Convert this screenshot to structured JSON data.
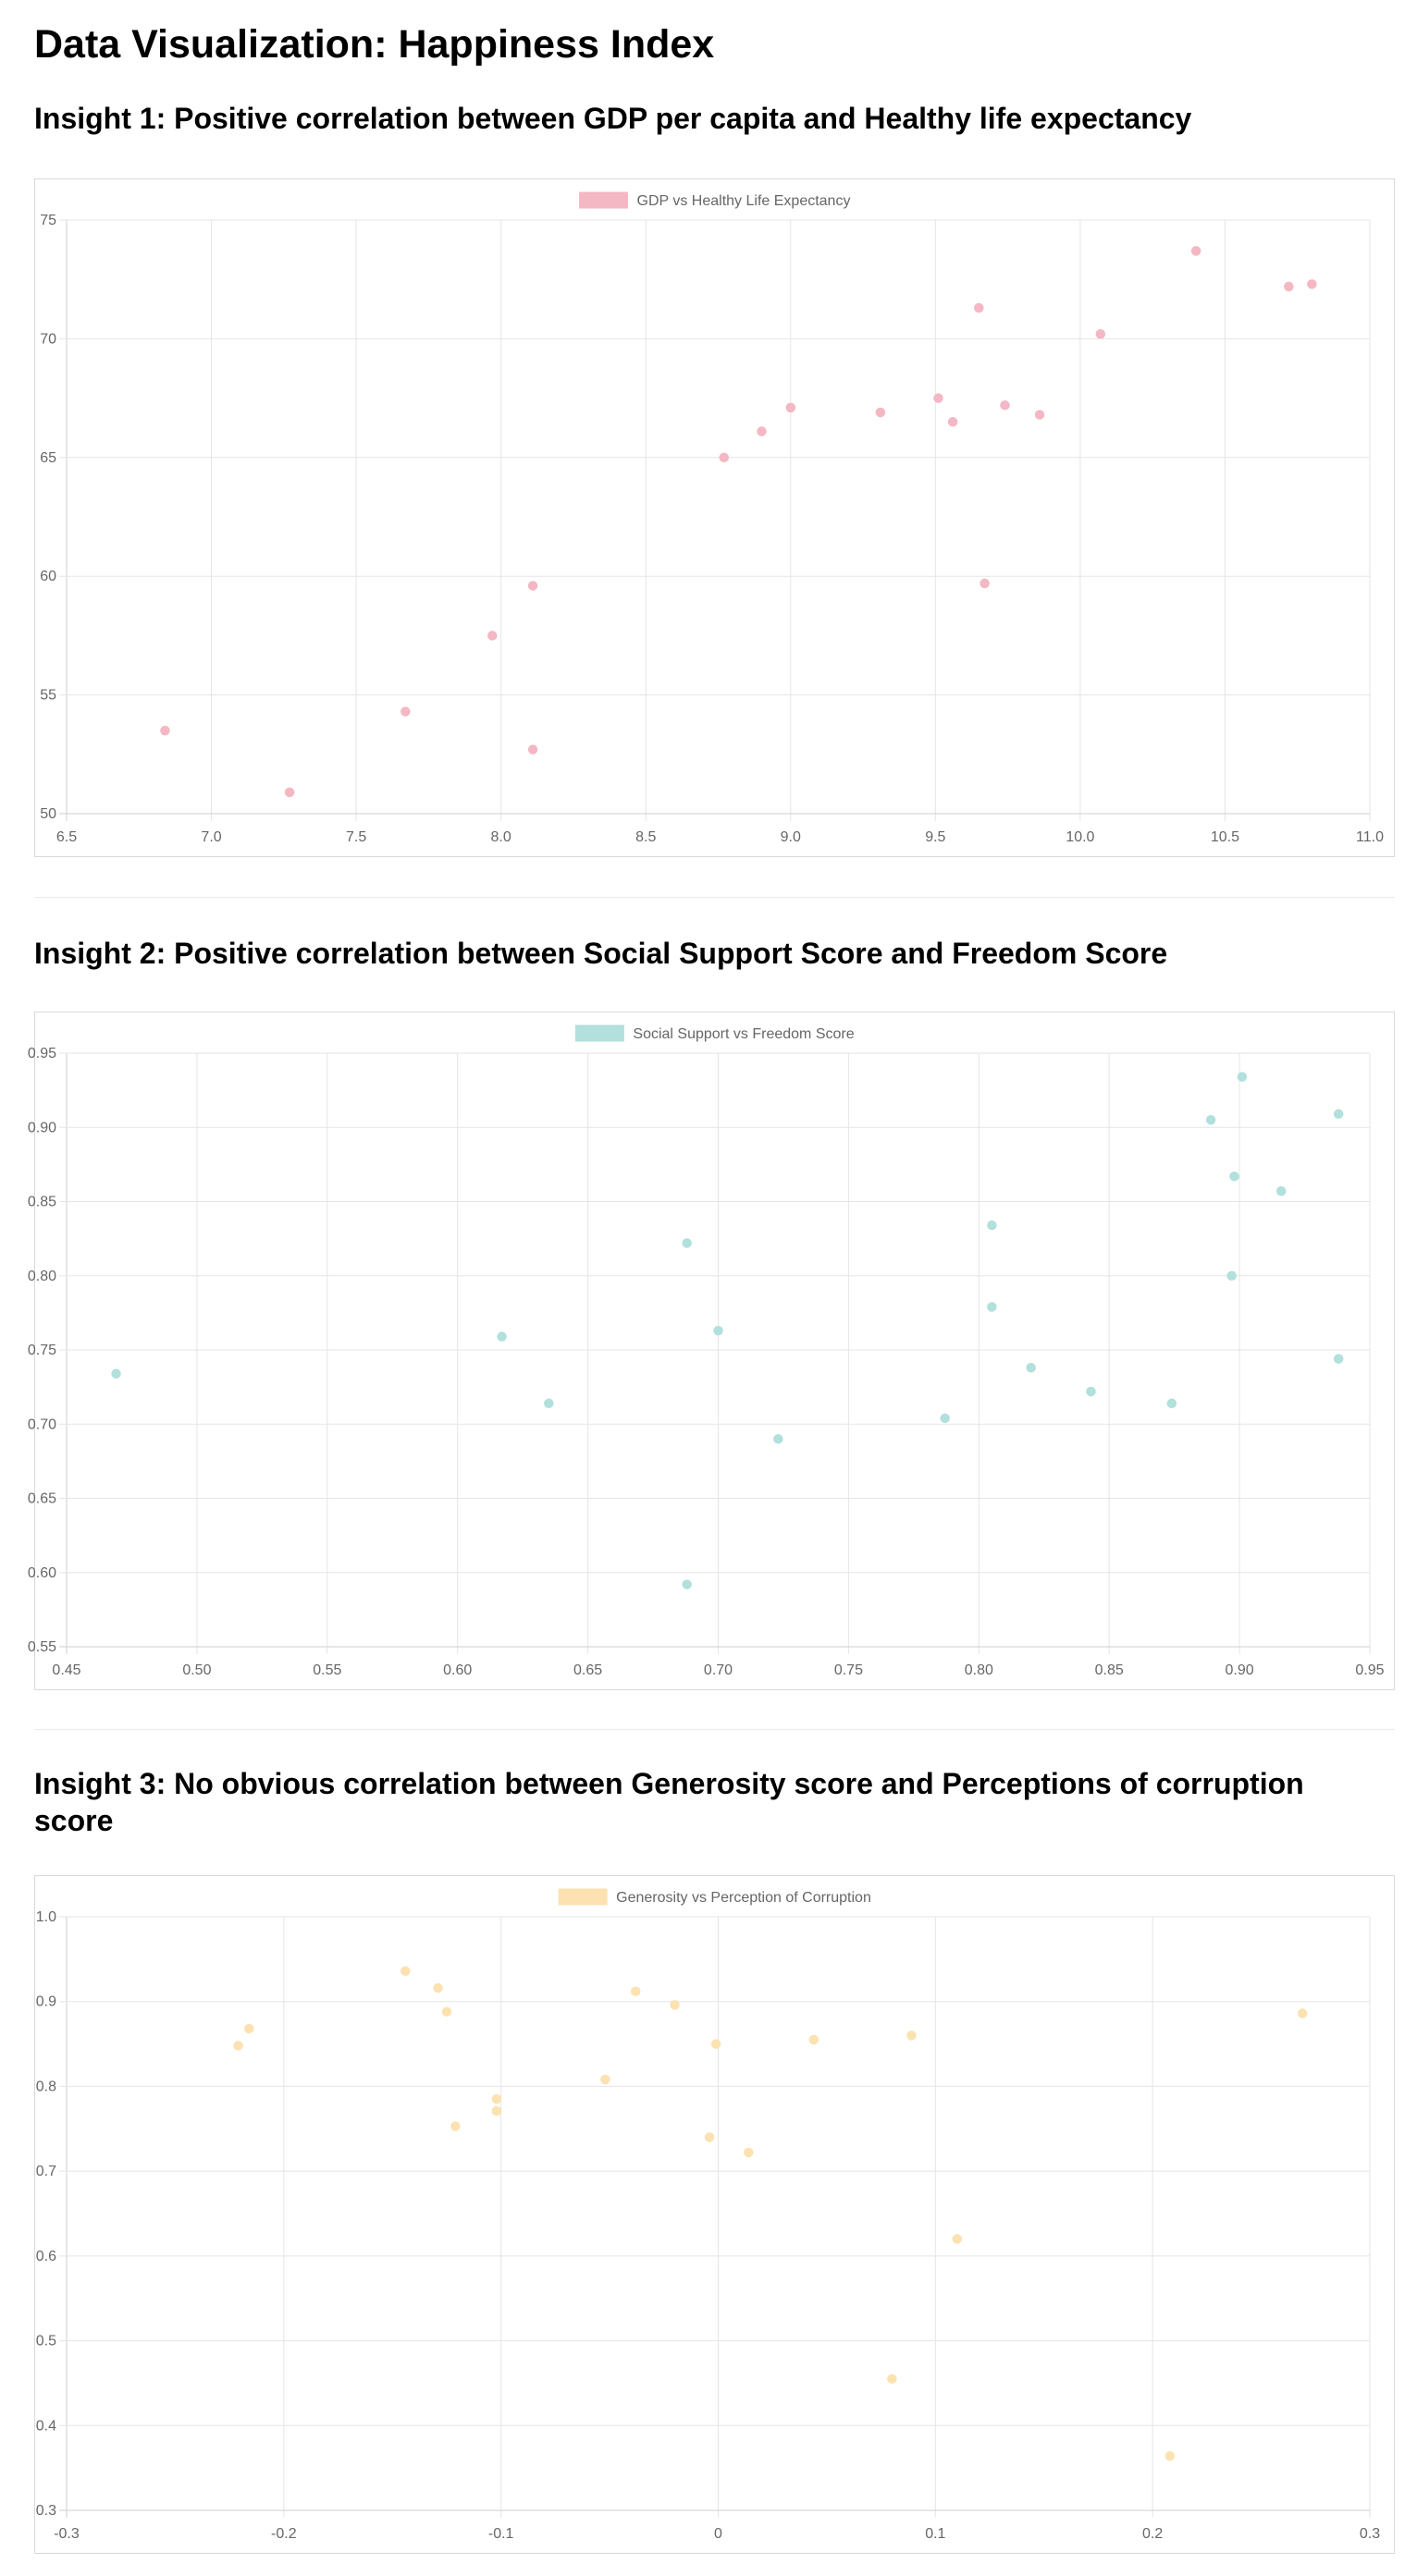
{
  "page": {
    "title": "Data Visualization: Happiness Index"
  },
  "insights": [
    {
      "title": "Insight 1: Positive correlation between GDP per capita and Healthy life expectancy"
    },
    {
      "title": "Insight 2: Positive correlation between Social Support Score and Freedom Score"
    },
    {
      "title": "Insight 3: No obvious correlation between Generosity score and Perceptions of corruption score"
    }
  ],
  "chart_data": [
    {
      "type": "scatter",
      "legend": "GDP vs Healthy Life Expectancy",
      "legend_placement": "top-center",
      "grid": true,
      "point_color": "#f4b7c4",
      "x_ticks": [
        6.5,
        7.0,
        7.5,
        8.0,
        8.5,
        9.0,
        9.5,
        10.0,
        10.5,
        11.0
      ],
      "x_tick_labels": [
        "6.5",
        "7.0",
        "7.5",
        "8.0",
        "8.5",
        "9.0",
        "9.5",
        "10.0",
        "10.5",
        "11.0"
      ],
      "y_ticks": [
        50,
        55,
        60,
        65,
        70,
        75
      ],
      "y_tick_labels": [
        "50",
        "55",
        "60",
        "65",
        "70",
        "75"
      ],
      "xlim": [
        6.5,
        11.0
      ],
      "ylim": [
        50,
        75
      ],
      "points": [
        {
          "x": 6.84,
          "y": 53.5
        },
        {
          "x": 7.27,
          "y": 50.9
        },
        {
          "x": 7.67,
          "y": 54.3
        },
        {
          "x": 7.97,
          "y": 57.5
        },
        {
          "x": 8.11,
          "y": 52.7
        },
        {
          "x": 8.11,
          "y": 59.6
        },
        {
          "x": 8.77,
          "y": 65.0
        },
        {
          "x": 8.9,
          "y": 66.1
        },
        {
          "x": 9.0,
          "y": 67.1
        },
        {
          "x": 9.31,
          "y": 66.9
        },
        {
          "x": 9.51,
          "y": 67.5
        },
        {
          "x": 9.56,
          "y": 66.5
        },
        {
          "x": 9.65,
          "y": 71.3
        },
        {
          "x": 9.67,
          "y": 59.7
        },
        {
          "x": 9.74,
          "y": 67.2
        },
        {
          "x": 9.86,
          "y": 66.8
        },
        {
          "x": 10.07,
          "y": 70.2
        },
        {
          "x": 10.4,
          "y": 73.7
        },
        {
          "x": 10.72,
          "y": 72.2
        },
        {
          "x": 10.8,
          "y": 72.3
        }
      ]
    },
    {
      "type": "scatter",
      "legend": "Social Support vs Freedom Score",
      "legend_placement": "top-center",
      "grid": true,
      "point_color": "#b2e0dc",
      "x_ticks": [
        0.45,
        0.5,
        0.55,
        0.6,
        0.65,
        0.7,
        0.75,
        0.8,
        0.85,
        0.9,
        0.95
      ],
      "x_tick_labels": [
        "0.45",
        "0.50",
        "0.55",
        "0.60",
        "0.65",
        "0.70",
        "0.75",
        "0.80",
        "0.85",
        "0.90",
        "0.95"
      ],
      "y_ticks": [
        0.55,
        0.6,
        0.65,
        0.7,
        0.75,
        0.8,
        0.85,
        0.9,
        0.95
      ],
      "y_tick_labels": [
        "0.55",
        "0.60",
        "0.65",
        "0.70",
        "0.75",
        "0.80",
        "0.85",
        "0.90",
        "0.95"
      ],
      "xlim": [
        0.45,
        0.95
      ],
      "ylim": [
        0.55,
        0.95
      ],
      "points": [
        {
          "x": 0.469,
          "y": 0.734
        },
        {
          "x": 0.617,
          "y": 0.759
        },
        {
          "x": 0.635,
          "y": 0.714
        },
        {
          "x": 0.688,
          "y": 0.822
        },
        {
          "x": 0.688,
          "y": 0.592
        },
        {
          "x": 0.7,
          "y": 0.763
        },
        {
          "x": 0.723,
          "y": 0.69
        },
        {
          "x": 0.787,
          "y": 0.704
        },
        {
          "x": 0.805,
          "y": 0.834
        },
        {
          "x": 0.805,
          "y": 0.779
        },
        {
          "x": 0.82,
          "y": 0.738
        },
        {
          "x": 0.843,
          "y": 0.722
        },
        {
          "x": 0.874,
          "y": 0.714
        },
        {
          "x": 0.889,
          "y": 0.905
        },
        {
          "x": 0.897,
          "y": 0.8
        },
        {
          "x": 0.898,
          "y": 0.867
        },
        {
          "x": 0.901,
          "y": 0.934
        },
        {
          "x": 0.916,
          "y": 0.857
        },
        {
          "x": 0.938,
          "y": 0.909
        },
        {
          "x": 0.938,
          "y": 0.744
        }
      ]
    },
    {
      "type": "scatter",
      "legend": "Generosity vs Perception of Corruption",
      "legend_placement": "top-center",
      "grid": true,
      "point_color": "#fbe2b0",
      "x_ticks": [
        -0.3,
        -0.2,
        -0.1,
        0,
        0.1,
        0.2,
        0.3
      ],
      "x_tick_labels": [
        "-0.3",
        "-0.2",
        "-0.1",
        "0",
        "0.1",
        "0.2",
        "0.3"
      ],
      "y_ticks": [
        0.3,
        0.4,
        0.5,
        0.6,
        0.7,
        0.8,
        0.9,
        1.0
      ],
      "y_tick_labels": [
        "0.3",
        "0.4",
        "0.5",
        "0.6",
        "0.7",
        "0.8",
        "0.9",
        "1.0"
      ],
      "xlim": [
        -0.3,
        0.3
      ],
      "ylim": [
        0.3,
        1.0
      ],
      "points": [
        {
          "x": -0.221,
          "y": 0.848
        },
        {
          "x": -0.216,
          "y": 0.868
        },
        {
          "x": -0.144,
          "y": 0.936
        },
        {
          "x": -0.129,
          "y": 0.916
        },
        {
          "x": -0.125,
          "y": 0.888
        },
        {
          "x": -0.121,
          "y": 0.753
        },
        {
          "x": -0.102,
          "y": 0.785
        },
        {
          "x": -0.102,
          "y": 0.771
        },
        {
          "x": -0.052,
          "y": 0.808
        },
        {
          "x": -0.038,
          "y": 0.912
        },
        {
          "x": -0.02,
          "y": 0.896
        },
        {
          "x": -0.004,
          "y": 0.74
        },
        {
          "x": -0.001,
          "y": 0.85
        },
        {
          "x": 0.014,
          "y": 0.722
        },
        {
          "x": 0.044,
          "y": 0.855
        },
        {
          "x": 0.08,
          "y": 0.455
        },
        {
          "x": 0.089,
          "y": 0.86
        },
        {
          "x": 0.11,
          "y": 0.62
        },
        {
          "x": 0.208,
          "y": 0.364
        },
        {
          "x": 0.269,
          "y": 0.886
        }
      ]
    }
  ]
}
